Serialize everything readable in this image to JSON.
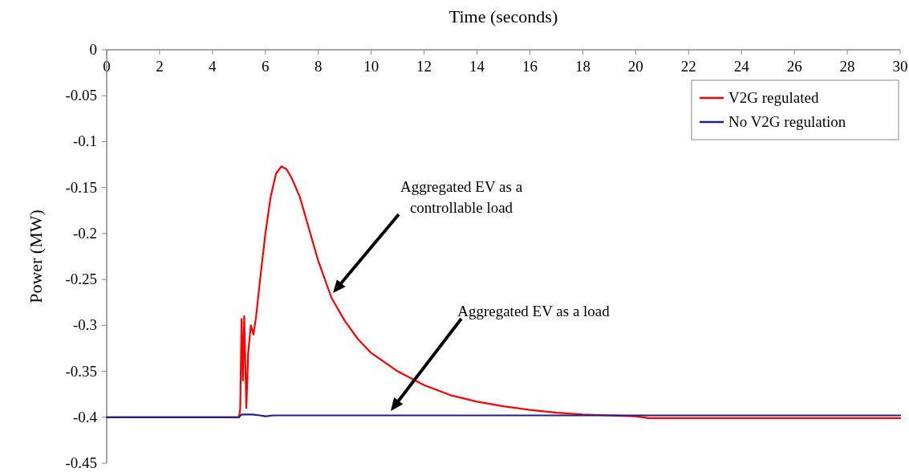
{
  "chart_data": {
    "type": "line",
    "xlabel": "Time (seconds)",
    "ylabel": "Power (MW)",
    "xlim": [
      0,
      30
    ],
    "xticks": [
      0,
      2,
      4,
      6,
      8,
      10,
      12,
      14,
      16,
      18,
      20,
      22,
      24,
      26,
      28,
      30
    ],
    "ylim": [
      -0.45,
      0
    ],
    "yticks": [
      -0.45,
      -0.4,
      -0.35,
      -0.3,
      -0.25,
      -0.2,
      -0.15,
      -0.1,
      -0.05,
      0
    ],
    "grid": false,
    "legend": "top right",
    "marker": "none",
    "line_style": "solid",
    "series": [
      {
        "name": "V2G regulated",
        "color": "#ff0000",
        "x": [
          0,
          5.0,
          5.05,
          5.1,
          5.15,
          5.2,
          5.28,
          5.35,
          5.45,
          5.55,
          5.65,
          5.8,
          6.0,
          6.2,
          6.4,
          6.6,
          6.8,
          7.0,
          7.3,
          7.6,
          8.0,
          8.5,
          9,
          9.5,
          10,
          11,
          12,
          13,
          14,
          15,
          16,
          17,
          18,
          19,
          20,
          20.5,
          21,
          22,
          30
        ],
        "values": [
          -0.4,
          -0.4,
          -0.39,
          -0.293,
          -0.36,
          -0.29,
          -0.39,
          -0.33,
          -0.3,
          -0.31,
          -0.29,
          -0.25,
          -0.2,
          -0.16,
          -0.135,
          -0.127,
          -0.13,
          -0.14,
          -0.16,
          -0.19,
          -0.23,
          -0.27,
          -0.295,
          -0.315,
          -0.33,
          -0.35,
          -0.365,
          -0.376,
          -0.383,
          -0.388,
          -0.392,
          -0.395,
          -0.397,
          -0.398,
          -0.399,
          -0.401,
          -0.401,
          -0.401,
          -0.401
        ]
      },
      {
        "name": "No V2G regulation",
        "color": "#1f1f8f",
        "x": [
          0,
          5.0,
          5.1,
          5.5,
          5.8,
          6.0,
          6.3,
          20,
          30
        ],
        "values": [
          -0.4,
          -0.4,
          -0.397,
          -0.397,
          -0.398,
          -0.399,
          -0.398,
          -0.398,
          -0.398
        ]
      }
    ],
    "annotations": [
      "Aggregated EV as a controllable load",
      "Aggregated EV as a load"
    ]
  }
}
